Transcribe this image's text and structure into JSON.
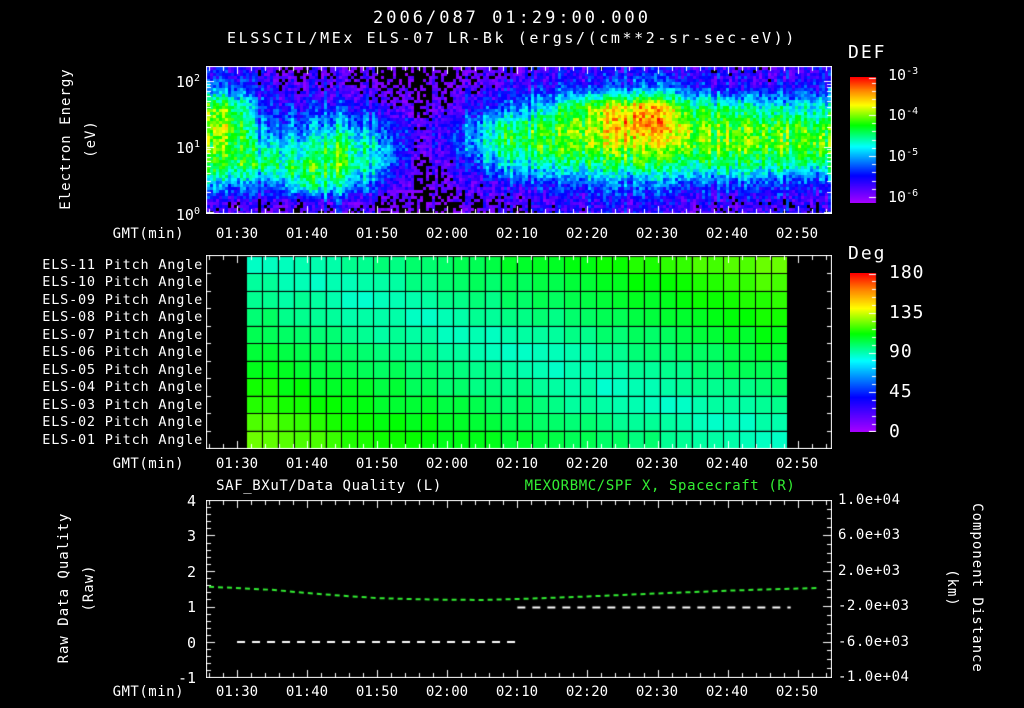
{
  "colors": {
    "background": "#000000",
    "foreground": "#ffffff",
    "accent_green": "#33ee33",
    "colormap": "rainbow"
  },
  "header": {
    "datetime": "2006/087 01:29:00.000",
    "title": "ELSSCIL/MEx ELS-07 LR-Bk  (ergs/(cm**2-sr-sec-eV))"
  },
  "time_axis": {
    "label": "GMT(min)",
    "ticks": [
      "01:30",
      "01:40",
      "01:50",
      "02:00",
      "02:10",
      "02:20",
      "02:30",
      "02:40",
      "02:50"
    ]
  },
  "spectrogram": {
    "ylabel_line1": "Electron Energy",
    "ylabel_line2": "(eV)",
    "yticks": [
      "10^0",
      "10^1",
      "10^2"
    ],
    "colorbar": {
      "title": "DEF",
      "ticks": [
        "10^-3",
        "10^-4",
        "10^-5",
        "10^-6"
      ]
    }
  },
  "pitch_panel": {
    "row_labels": [
      "ELS-11 Pitch Angle",
      "ELS-10 Pitch Angle",
      "ELS-09 Pitch Angle",
      "ELS-08 Pitch Angle",
      "ELS-07 Pitch Angle",
      "ELS-06 Pitch Angle",
      "ELS-05 Pitch Angle",
      "ELS-04 Pitch Angle",
      "ELS-03 Pitch Angle",
      "ELS-02 Pitch Angle",
      "ELS-01 Pitch Angle"
    ],
    "colorbar": {
      "title": "Deg",
      "ticks": [
        "180",
        "135",
        "90",
        "45",
        "0"
      ]
    }
  },
  "bottom_panel": {
    "left_title": "SAF_BXuT/Data Quality (L)",
    "right_title": "MEXORBMC/SPF X, Spacecraft (R)",
    "ylabel_left_line1": "Raw Data Quality",
    "ylabel_left_line2": "(Raw)",
    "ylabel_right_line1": "Component Distance",
    "ylabel_right_line2": "(km)",
    "left_ticks": [
      "4",
      "3",
      "2",
      "1",
      "0",
      "-1"
    ],
    "right_ticks": [
      "1.0e+04",
      "6.0e+03",
      "2.0e+03",
      "-2.0e+03",
      "-6.0e+03",
      "-1.0e+04"
    ]
  },
  "chart_data": [
    {
      "type": "heatmap",
      "name": "electron-energy-spectrogram",
      "title": "ELSSCIL/MEx ELS-07 LR-Bk",
      "units": "ergs/(cm**2-sr-sec-eV)",
      "xlabel": "GMT(min)",
      "x_ticks": [
        "01:30",
        "01:40",
        "01:50",
        "02:00",
        "02:10",
        "02:20",
        "02:30",
        "02:40",
        "02:50"
      ],
      "x_range": [
        "01:26",
        "02:55"
      ],
      "ylabel": "Electron Energy (eV)",
      "y_scale": "log",
      "y_range_eV": [
        1,
        175
      ],
      "colorbar": {
        "title": "DEF",
        "scale": "log",
        "tick_labels": [
          "10^-3",
          "10^-4",
          "10^-5",
          "10^-6"
        ],
        "clim_log10": [
          -6.45,
          -3.6
        ]
      },
      "time_bins": [
        "01:26",
        "01:31",
        "01:37",
        "01:42",
        "01:48",
        "01:53",
        "01:59",
        "02:04",
        "02:10",
        "02:15",
        "02:21",
        "02:26",
        "02:32",
        "02:37",
        "02:43",
        "02:49"
      ],
      "energy_bins_eV": [
        1.3,
        2.5,
        5,
        10,
        20,
        40,
        80,
        160
      ],
      "log10_def_rows_low_to_high_energy": [
        [
          -6.1,
          -6.2,
          -6.1,
          -6.0,
          -6.3,
          -6.45,
          -6.3,
          -6.2,
          -6.1,
          -6.0,
          -6.0,
          -6.0,
          -6.1,
          -6.1,
          -6.0,
          -6.1
        ],
        [
          -5.4,
          -5.7,
          -4.9,
          -5.1,
          -5.8,
          -6.4,
          -6.1,
          -5.9,
          -5.8,
          -5.7,
          -5.6,
          -5.6,
          -5.7,
          -5.7,
          -5.7,
          -5.8
        ],
        [
          -4.7,
          -4.9,
          -4.75,
          -4.6,
          -5.3,
          -6.4,
          -5.9,
          -5.3,
          -5.1,
          -5.0,
          -4.9,
          -4.85,
          -5.0,
          -4.95,
          -4.95,
          -5.0
        ],
        [
          -4.6,
          -5.2,
          -5.1,
          -4.7,
          -5.3,
          -6.2,
          -5.6,
          -4.8,
          -4.7,
          -4.55,
          -4.4,
          -4.35,
          -4.5,
          -4.55,
          -4.55,
          -4.6
        ],
        [
          -4.4,
          -5.6,
          -5.5,
          -5.2,
          -5.6,
          -6.2,
          -5.7,
          -4.9,
          -4.75,
          -4.5,
          -4.1,
          -3.95,
          -4.5,
          -4.6,
          -4.6,
          -4.65
        ],
        [
          -4.6,
          -5.8,
          -5.8,
          -5.7,
          -6.0,
          -6.4,
          -6.0,
          -5.6,
          -5.4,
          -4.7,
          -4.2,
          -4.05,
          -4.9,
          -5.0,
          -5.1,
          -5.2
        ],
        [
          -5.6,
          -6.0,
          -6.1,
          -6.1,
          -6.3,
          -6.45,
          -6.2,
          -6.0,
          -5.9,
          -5.8,
          -5.7,
          -5.6,
          -5.8,
          -5.9,
          -5.9,
          -5.8
        ],
        [
          -5.9,
          -6.2,
          -6.3,
          -6.2,
          -6.4,
          -6.45,
          -6.4,
          -6.2,
          -6.1,
          -6.0,
          -6.0,
          -5.9,
          -6.0,
          -6.1,
          -6.1,
          -6.0
        ]
      ]
    },
    {
      "type": "heatmap",
      "name": "els-pitch-angles",
      "rows_top_to_bottom": [
        "ELS-11",
        "ELS-10",
        "ELS-09",
        "ELS-08",
        "ELS-07",
        "ELS-06",
        "ELS-05",
        "ELS-04",
        "ELS-03",
        "ELS-02",
        "ELS-01"
      ],
      "xlabel": "GMT(min)",
      "time_range": [
        "01:31",
        "02:49"
      ],
      "time_samples": 17,
      "colorbar": {
        "title": "Deg",
        "range": [
          0,
          180
        ],
        "tick_labels": [
          180,
          135,
          90,
          45,
          0
        ]
      },
      "values_deg_rows_top_to_bottom": [
        [
          88,
          90,
          92,
          95,
          97,
          99,
          101,
          103,
          106,
          108,
          110,
          112,
          114,
          116,
          119,
          121,
          123
        ],
        [
          92,
          89,
          89,
          91,
          93,
          95,
          98,
          100,
          102,
          104,
          106,
          109,
          111,
          113,
          115,
          117,
          120
        ],
        [
          95,
          93,
          91,
          88,
          90,
          92,
          94,
          96,
          99,
          101,
          103,
          105,
          107,
          109,
          112,
          114,
          116
        ],
        [
          99,
          96,
          94,
          92,
          90,
          88,
          91,
          93,
          95,
          97,
          99,
          102,
          104,
          106,
          108,
          110,
          113
        ],
        [
          102,
          100,
          98,
          95,
          93,
          91,
          89,
          89,
          92,
          94,
          96,
          98,
          100,
          102,
          105,
          107,
          109
        ],
        [
          106,
          103,
          101,
          99,
          97,
          95,
          92,
          90,
          88,
          90,
          92,
          95,
          97,
          99,
          101,
          103,
          106
        ],
        [
          109,
          107,
          105,
          102,
          100,
          98,
          96,
          94,
          92,
          89,
          89,
          91,
          93,
          95,
          98,
          100,
          102
        ],
        [
          113,
          110,
          108,
          106,
          104,
          102,
          99,
          97,
          95,
          93,
          91,
          88,
          90,
          92,
          94,
          96,
          99
        ],
        [
          116,
          114,
          112,
          109,
          107,
          105,
          103,
          101,
          99,
          96,
          94,
          92,
          90,
          88,
          91,
          93,
          95
        ],
        [
          120,
          117,
          115,
          113,
          111,
          109,
          106,
          104,
          102,
          100,
          98,
          95,
          93,
          91,
          89,
          89,
          92
        ],
        [
          123,
          121,
          119,
          116,
          114,
          112,
          110,
          108,
          106,
          103,
          101,
          99,
          97,
          95,
          92,
          90,
          88
        ]
      ]
    },
    {
      "type": "line",
      "name": "quality-and-distance",
      "xlabel": "GMT(min)",
      "x_ticks": [
        "01:30",
        "01:40",
        "01:50",
        "02:00",
        "02:10",
        "02:20",
        "02:30",
        "02:40",
        "02:50"
      ],
      "left_axis": {
        "label": "Raw Data Quality (Raw)",
        "range": [
          -1,
          4
        ],
        "ticks": [
          4,
          3,
          2,
          1,
          0,
          -1
        ]
      },
      "right_axis": {
        "label": "Component Distance (km)",
        "range": [
          -10000,
          10000
        ],
        "ticks": [
          10000,
          6000,
          2000,
          -2000,
          -6000,
          -10000
        ]
      },
      "series": [
        {
          "name": "SAF_BXuT/Data Quality (L)",
          "axis": "left",
          "color": "#ffffff",
          "style": "dashed",
          "segments": [
            {
              "x_start": "01:30",
              "x_end": "02:10",
              "y": 0
            },
            {
              "x_start": "02:10",
              "x_end": "02:49",
              "y": 0.97
            }
          ]
        },
        {
          "name": "MEXORBMC/SPF X, Spacecraft (R)",
          "axis": "right",
          "color": "#33ee33",
          "style": "dashed",
          "x": [
            "01:26",
            "01:35",
            "01:40",
            "01:45",
            "01:50",
            "01:55",
            "02:00",
            "02:05",
            "02:10",
            "02:15",
            "02:20",
            "02:25",
            "02:30",
            "02:35",
            "02:40",
            "02:45",
            "02:50",
            "02:53"
          ],
          "y_km": [
            200,
            -150,
            -510,
            -820,
            -1080,
            -1200,
            -1270,
            -1290,
            -1190,
            -1050,
            -900,
            -730,
            -560,
            -400,
            -250,
            -120,
            0,
            60
          ]
        }
      ]
    }
  ]
}
